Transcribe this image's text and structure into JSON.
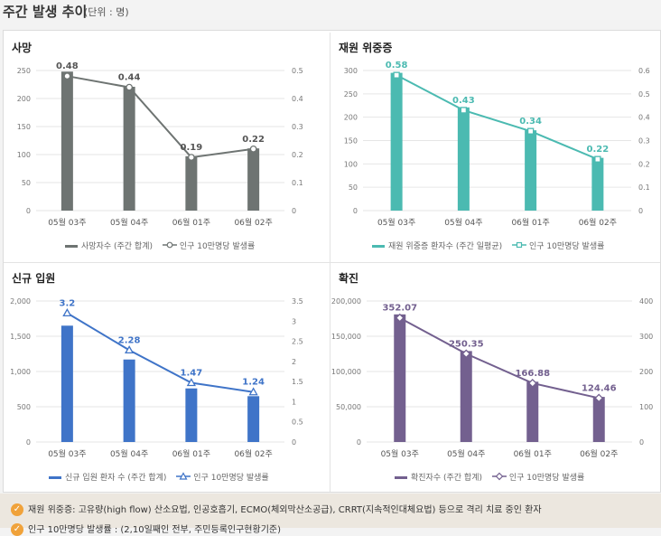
{
  "header": {
    "title": "주간 발생 추이",
    "unit": "(단위 : 명)"
  },
  "colors": {
    "deaths": "#6e7472",
    "severe": "#4bbab1",
    "admissions": "#3f74c8",
    "confirmed": "#73608f",
    "note_icon": "#f0a23a"
  },
  "notes": [
    "재원 위중증: 고유량(high flow) 산소요법, 인공호흡기, ECMO(체외막산소공급), CRRT(지속적인대체요법) 등으로 격리 치료 중인 환자",
    "인구 10만명당 발생률 : (2,10일째인 전부, 주민등록인구현황기준)"
  ],
  "chart_data": [
    {
      "type": "bar",
      "title": "사망",
      "categories": [
        "05월 03주",
        "05월 04주",
        "06월 01주",
        "06월 02주"
      ],
      "series": [
        {
          "name": "사망자수 (주간 합계)",
          "type": "bar",
          "axis": "left",
          "values": [
            248,
            221,
            97,
            111
          ]
        },
        {
          "name": "인구 10만명당 발생률",
          "type": "line",
          "axis": "right",
          "marker": "circle",
          "values": [
            0.48,
            0.44,
            0.19,
            0.22
          ],
          "labels": [
            "0.48",
            "0.44",
            "0.19",
            "0.22"
          ]
        }
      ],
      "y_left": {
        "ticks": [
          "0",
          "50",
          "100",
          "150",
          "200",
          "250"
        ],
        "min": 0,
        "max": 250
      },
      "y_right": {
        "ticks": [
          "0",
          "0.1",
          "0.2",
          "0.3",
          "0.4",
          "0.5"
        ],
        "min": 0,
        "max": 0.5
      },
      "grid": true,
      "legend": "bottom"
    },
    {
      "type": "bar",
      "title": "재원 위중증",
      "categories": [
        "05월 03주",
        "05월 04주",
        "06월 01주",
        "06월 02주"
      ],
      "series": [
        {
          "name": "재원 위중증 환자수 (주간 일평균)",
          "type": "bar",
          "axis": "left",
          "values": [
            295,
            221,
            172,
            113
          ]
        },
        {
          "name": "인구 10만명당 발생률",
          "type": "line",
          "axis": "right",
          "marker": "square",
          "values": [
            0.58,
            0.43,
            0.34,
            0.22
          ],
          "labels": [
            "0.58",
            "0.43",
            "0.34",
            "0.22"
          ]
        }
      ],
      "y_left": {
        "ticks": [
          "0",
          "50",
          "100",
          "150",
          "200",
          "250",
          "300"
        ],
        "min": 0,
        "max": 300
      },
      "y_right": {
        "ticks": [
          "0",
          "0.1",
          "0.2",
          "0.3",
          "0.4",
          "0.5",
          "0.6"
        ],
        "min": 0,
        "max": 0.6
      },
      "grid": true,
      "legend": "bottom"
    },
    {
      "type": "bar",
      "title": "신규 입원",
      "categories": [
        "05월 03주",
        "05월 04주",
        "06월 01주",
        "06월 02주"
      ],
      "series": [
        {
          "name": "신규 입원 환자 수 (주간 합계)",
          "type": "bar",
          "axis": "left",
          "values": [
            1650,
            1170,
            760,
            650
          ]
        },
        {
          "name": "인구 10만명당 발생률",
          "type": "line",
          "axis": "right",
          "marker": "triangle",
          "values": [
            3.2,
            2.28,
            1.47,
            1.24
          ],
          "labels": [
            "3.2",
            "2.28",
            "1.47",
            "1.24"
          ]
        }
      ],
      "y_left": {
        "ticks": [
          "0",
          "500",
          "1,000",
          "1,500",
          "2,000"
        ],
        "min": 0,
        "max": 2000
      },
      "y_right": {
        "ticks": [
          "0",
          "0.5",
          "1",
          "1.5",
          "2",
          "2.5",
          "3",
          "3.5"
        ],
        "min": 0,
        "max": 3.5
      },
      "grid": true,
      "legend": "bottom"
    },
    {
      "type": "bar",
      "title": "확진",
      "categories": [
        "05월 03주",
        "05월 04주",
        "06월 01주",
        "06월 02주"
      ],
      "series": [
        {
          "name": "확진자수 (주간 합계)",
          "type": "bar",
          "axis": "left",
          "values": [
            181000,
            129000,
            85500,
            64000
          ]
        },
        {
          "name": "인구 10만명당 발생률",
          "type": "line",
          "axis": "right",
          "marker": "diamond",
          "values": [
            352.07,
            250.35,
            166.88,
            124.46
          ],
          "labels": [
            "352.07",
            "250.35",
            "166.88",
            "124.46"
          ]
        }
      ],
      "y_left": {
        "ticks": [
          "0",
          "50,000",
          "100,000",
          "150,000",
          "200,000"
        ],
        "min": 0,
        "max": 200000
      },
      "y_right": {
        "ticks": [
          "0",
          "100",
          "200",
          "300",
          "400"
        ],
        "min": 0,
        "max": 400
      },
      "grid": true,
      "legend": "bottom"
    }
  ]
}
